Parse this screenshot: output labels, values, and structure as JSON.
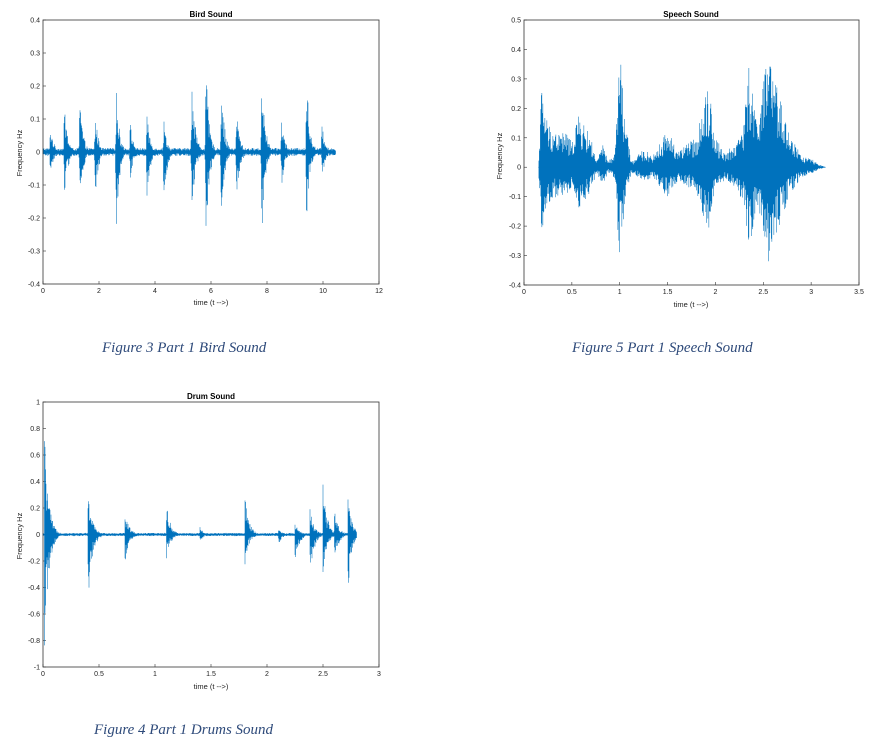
{
  "captions": {
    "bird": "Figure 3 Part 1 Bird Sound",
    "speech": "Figure 5 Part 1 Speech Sound",
    "drums": "Figure 4 Part 1 Drums Sound"
  },
  "chart_data": [
    {
      "id": "bird",
      "type": "line",
      "title": "Bird Sound",
      "xlabel": "time (t -->)",
      "ylabel": "Frequency Hz",
      "xlim": [
        0,
        12
      ],
      "ylim": [
        -0.4,
        0.4
      ],
      "xticks": [
        0,
        2,
        4,
        6,
        8,
        10,
        12
      ],
      "yticks": [
        -0.4,
        -0.3,
        -0.2,
        -0.1,
        0,
        0.1,
        0.2,
        0.3,
        0.4
      ],
      "color": "#0072bd",
      "signal_end": 10.45,
      "baseline_amplitude": 0.012,
      "bursts": [
        {
          "t": 0.25,
          "up": 0.12,
          "down": 0.1
        },
        {
          "t": 0.75,
          "up": 0.21,
          "down": 0.22
        },
        {
          "t": 1.3,
          "up": 0.24,
          "down": 0.24
        },
        {
          "t": 1.85,
          "up": 0.17,
          "down": 0.21
        },
        {
          "t": 2.6,
          "up": 0.28,
          "down": 0.33
        },
        {
          "t": 3.1,
          "up": 0.13,
          "down": 0.12
        },
        {
          "t": 3.7,
          "up": 0.17,
          "down": 0.21
        },
        {
          "t": 4.3,
          "up": 0.14,
          "down": 0.21
        },
        {
          "t": 5.3,
          "up": 0.37,
          "down": 0.3
        },
        {
          "t": 5.8,
          "up": 0.38,
          "down": 0.39
        },
        {
          "t": 6.35,
          "up": 0.32,
          "down": 0.3
        },
        {
          "t": 6.9,
          "up": 0.19,
          "down": 0.23
        },
        {
          "t": 7.8,
          "up": 0.38,
          "down": 0.37
        },
        {
          "t": 8.5,
          "up": 0.16,
          "down": 0.17
        },
        {
          "t": 9.4,
          "up": 0.34,
          "down": 0.31
        },
        {
          "t": 9.95,
          "up": 0.14,
          "down": 0.12
        }
      ]
    },
    {
      "id": "speech",
      "type": "line",
      "title": "Speech Sound",
      "xlabel": "time (t -->)",
      "ylabel": "Frequency Hz",
      "xlim": [
        0,
        3.5
      ],
      "ylim": [
        -0.4,
        0.5
      ],
      "xticks": [
        0,
        0.5,
        1,
        1.5,
        2,
        2.5,
        3,
        3.5
      ],
      "yticks": [
        -0.4,
        -0.3,
        -0.2,
        -0.1,
        0,
        0.1,
        0.2,
        0.3,
        0.4,
        0.5
      ],
      "color": "#0072bd",
      "signal_start": 0.15,
      "signal_end": 3.15,
      "envelope": [
        [
          0.15,
          0.0
        ],
        [
          0.18,
          0.28
        ],
        [
          0.25,
          0.15
        ],
        [
          0.35,
          0.12
        ],
        [
          0.45,
          0.12
        ],
        [
          0.5,
          0.08
        ],
        [
          0.55,
          0.18
        ],
        [
          0.62,
          0.15
        ],
        [
          0.7,
          0.1
        ],
        [
          0.76,
          0.02
        ],
        [
          0.82,
          0.08
        ],
        [
          0.88,
          0.02
        ],
        [
          0.95,
          0.05
        ],
        [
          1.0,
          0.41
        ],
        [
          1.05,
          0.18
        ],
        [
          1.12,
          0.02
        ],
        [
          1.25,
          0.06
        ],
        [
          1.35,
          0.04
        ],
        [
          1.45,
          0.1
        ],
        [
          1.5,
          0.13
        ],
        [
          1.6,
          0.06
        ],
        [
          1.7,
          0.08
        ],
        [
          1.8,
          0.1
        ],
        [
          1.92,
          0.3
        ],
        [
          2.0,
          0.1
        ],
        [
          2.1,
          0.05
        ],
        [
          2.2,
          0.08
        ],
        [
          2.3,
          0.16
        ],
        [
          2.35,
          0.35
        ],
        [
          2.42,
          0.18
        ],
        [
          2.5,
          0.28
        ],
        [
          2.55,
          0.41
        ],
        [
          2.62,
          0.3
        ],
        [
          2.7,
          0.2
        ],
        [
          2.8,
          0.1
        ],
        [
          2.9,
          0.04
        ],
        [
          3.0,
          0.03
        ],
        [
          3.08,
          0.01
        ],
        [
          3.15,
          0.0
        ]
      ]
    },
    {
      "id": "drums",
      "type": "line",
      "title": "Drum Sound",
      "xlabel": "time (t -->)",
      "ylabel": "Frequency Hz",
      "xlim": [
        0,
        3
      ],
      "ylim": [
        -1,
        1
      ],
      "xticks": [
        0,
        0.5,
        1,
        1.5,
        2,
        2.5,
        3
      ],
      "yticks": [
        -1,
        -0.8,
        -0.6,
        -0.4,
        -0.2,
        0,
        0.2,
        0.4,
        0.6,
        0.8,
        1
      ],
      "color": "#0072bd",
      "signal_end": 2.8,
      "baseline_amplitude": 0.012,
      "hits": [
        {
          "t": 0.01,
          "up": 0.85,
          "down": 0.98
        },
        {
          "t": 0.4,
          "up": 0.36,
          "down": 0.59
        },
        {
          "t": 0.73,
          "up": 0.2,
          "down": 0.23
        },
        {
          "t": 1.1,
          "up": 0.26,
          "down": 0.2
        },
        {
          "t": 1.4,
          "up": 0.06,
          "down": 0.06
        },
        {
          "t": 1.8,
          "up": 0.32,
          "down": 0.25
        },
        {
          "t": 2.1,
          "up": 0.05,
          "down": 0.08
        },
        {
          "t": 2.25,
          "up": 0.1,
          "down": 0.24
        },
        {
          "t": 2.38,
          "up": 0.22,
          "down": 0.36
        },
        {
          "t": 2.5,
          "up": 0.38,
          "down": 0.29
        },
        {
          "t": 2.6,
          "up": 0.2,
          "down": 0.24
        },
        {
          "t": 2.72,
          "up": 0.29,
          "down": 0.49
        }
      ]
    }
  ]
}
